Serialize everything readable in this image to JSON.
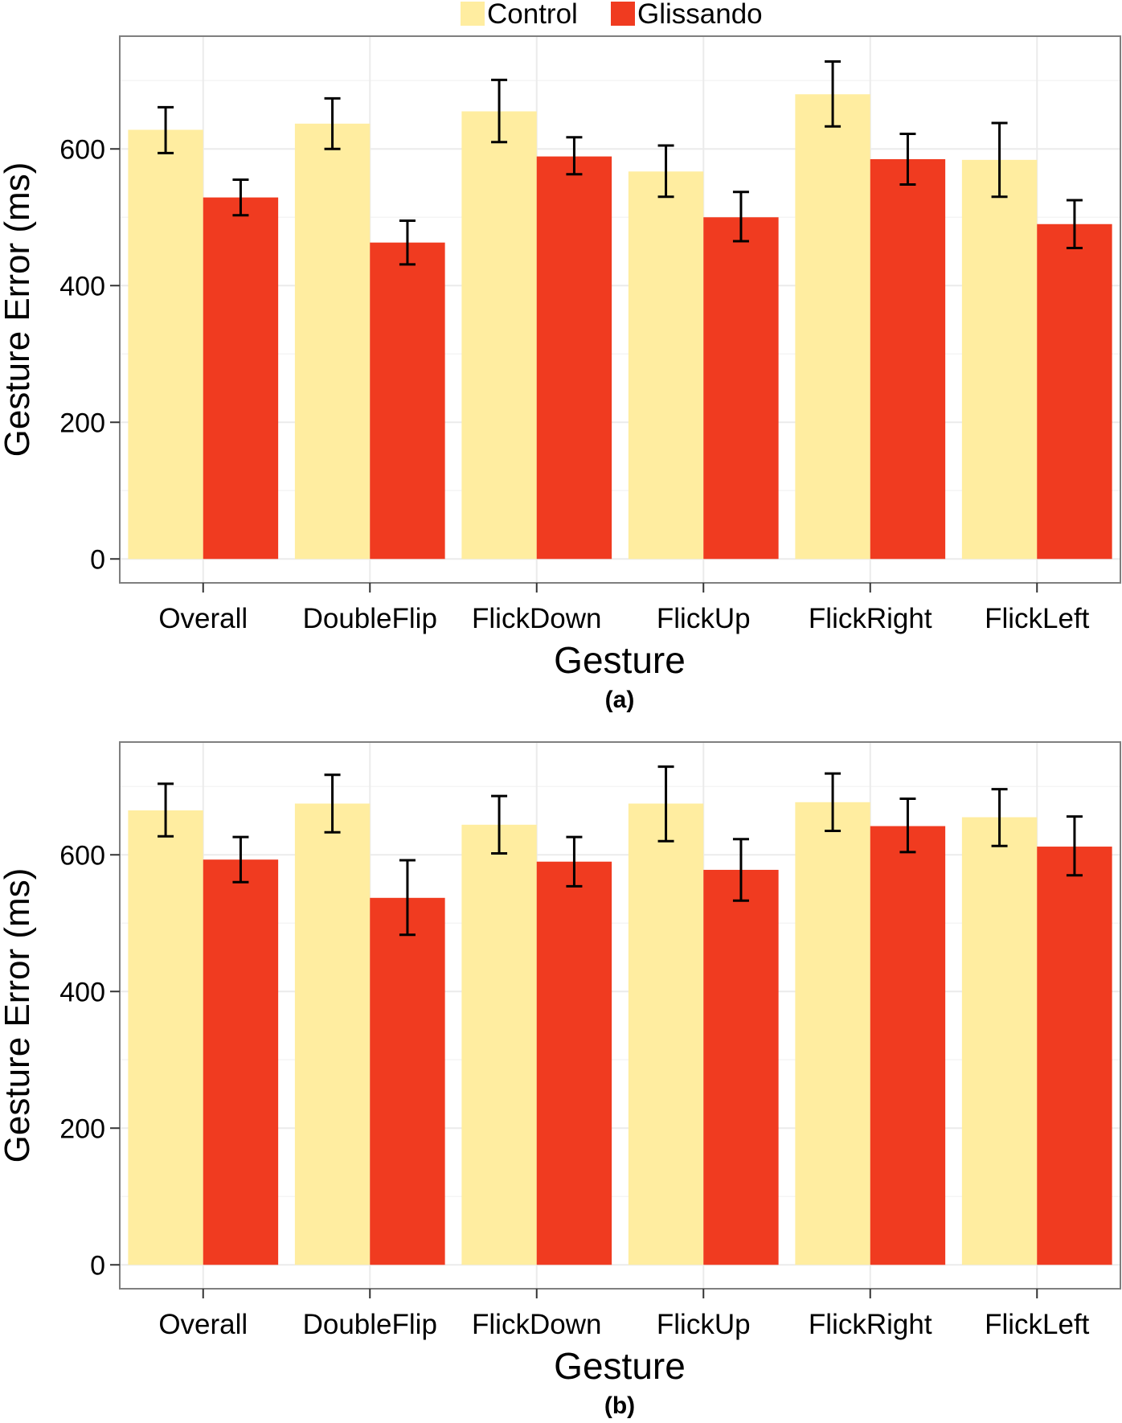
{
  "legend": {
    "placement": "top-center",
    "items": [
      {
        "name": "Control",
        "color": "#FFEDA0"
      },
      {
        "name": "Glissando",
        "color": "#F03B20"
      }
    ]
  },
  "chart_data": [
    {
      "type": "bar",
      "panel_label": "(a)",
      "title": "",
      "xlabel": "Gesture",
      "ylabel": "Gesture Error (ms)",
      "categories": [
        "Overall",
        "DoubleFlip",
        "FlickDown",
        "FlickUp",
        "FlickRight",
        "FlickLeft"
      ],
      "yticks": [
        0,
        200,
        400,
        600
      ],
      "ylim": [
        -35,
        765
      ],
      "grid": true,
      "series": [
        {
          "name": "Control",
          "values": [
            628,
            637,
            655,
            567,
            680,
            584
          ],
          "error_low": [
            594,
            600,
            610,
            530,
            633,
            530
          ],
          "error_high": [
            661,
            674,
            701,
            605,
            728,
            638
          ]
        },
        {
          "name": "Glissando",
          "values": [
            529,
            463,
            589,
            500,
            585,
            490
          ],
          "error_low": [
            503,
            431,
            563,
            465,
            548,
            455
          ],
          "error_high": [
            555,
            495,
            617,
            537,
            622,
            525
          ]
        }
      ]
    },
    {
      "type": "bar",
      "panel_label": "(b)",
      "title": "",
      "xlabel": "Gesture",
      "ylabel": "Gesture Error (ms)",
      "categories": [
        "Overall",
        "DoubleFlip",
        "FlickDown",
        "FlickUp",
        "FlickRight",
        "FlickLeft"
      ],
      "yticks": [
        0,
        200,
        400,
        600
      ],
      "ylim": [
        -35,
        765
      ],
      "grid": true,
      "series": [
        {
          "name": "Control",
          "values": [
            665,
            675,
            644,
            675,
            677,
            655
          ],
          "error_low": [
            627,
            633,
            602,
            620,
            635,
            613
          ],
          "error_high": [
            704,
            717,
            686,
            729,
            719,
            696
          ]
        },
        {
          "name": "Glissando",
          "values": [
            593,
            537,
            590,
            578,
            642,
            612
          ],
          "error_low": [
            560,
            483,
            554,
            533,
            604,
            570
          ],
          "error_high": [
            626,
            592,
            626,
            623,
            682,
            656
          ]
        }
      ]
    }
  ]
}
